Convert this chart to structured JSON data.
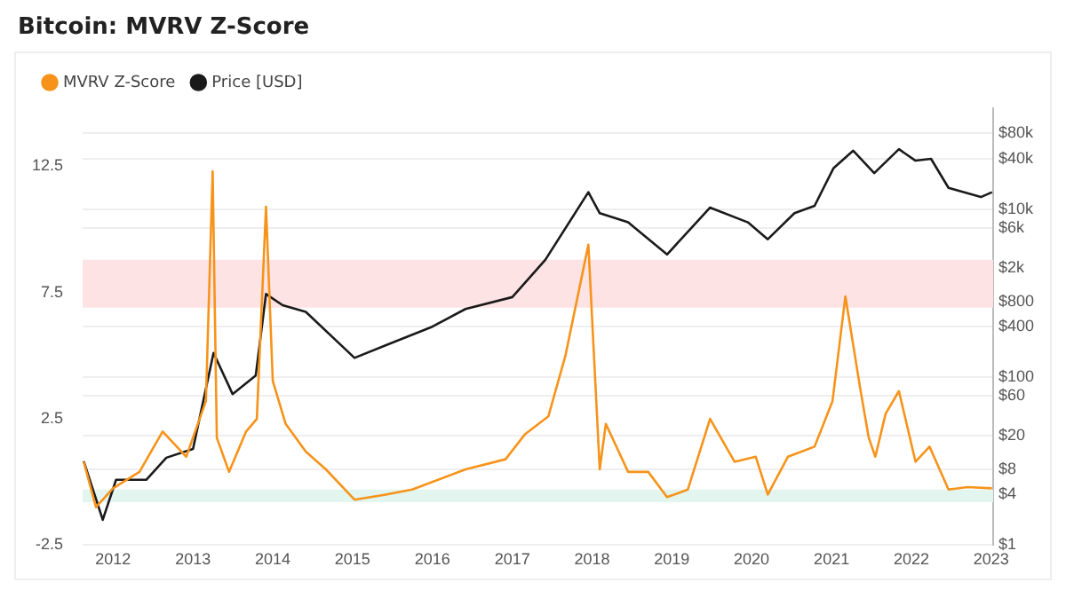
{
  "chart_data": {
    "type": "line",
    "title": "Bitcoin: MVRV Z-Score",
    "xlim": [
      "2011-08-15",
      "2023-01-10"
    ],
    "xticks": [
      {
        "value": "2012",
        "label": "2012"
      },
      {
        "value": "2013",
        "label": "2013"
      },
      {
        "value": "2014",
        "label": "2014"
      },
      {
        "value": "2015",
        "label": "2015"
      },
      {
        "value": "2016",
        "label": "2016"
      },
      {
        "value": "2017",
        "label": "2017"
      },
      {
        "value": "2018",
        "label": "2018"
      },
      {
        "value": "2019",
        "label": "2019"
      },
      {
        "value": "2020",
        "label": "2020"
      },
      {
        "value": "2021",
        "label": "2021"
      },
      {
        "value": "2022",
        "label": "2022"
      },
      {
        "value": "2023",
        "label": "2023"
      }
    ],
    "ylim": [
      -2.5,
      14.8
    ],
    "yticks": [
      -2.5,
      2.5,
      7.5,
      12.5
    ],
    "y2lim": [
      1,
      160000
    ],
    "y2ticks": [
      {
        "value": 1,
        "label": "$1"
      },
      {
        "value": 4,
        "label": "$4"
      },
      {
        "value": 8,
        "label": "$8"
      },
      {
        "value": 20,
        "label": "$20"
      },
      {
        "value": 60,
        "label": "$60"
      },
      {
        "value": 100,
        "label": "$100"
      },
      {
        "value": 400,
        "label": "$400"
      },
      {
        "value": 800,
        "label": "$800"
      },
      {
        "value": 2000,
        "label": "$2k"
      },
      {
        "value": 6000,
        "label": "$6k"
      },
      {
        "value": 10000,
        "label": "$10k"
      },
      {
        "value": 40000,
        "label": "$40k"
      },
      {
        "value": 80000,
        "label": "$80k"
      }
    ],
    "log": "y2",
    "grid": "y",
    "legend": "top left",
    "bands": [
      {
        "axis": "y",
        "from": 6.9,
        "to": 8.8,
        "color": "#fde3e3"
      },
      {
        "axis": "y",
        "from": -0.8,
        "to": -0.3,
        "color": "#e2f5ee"
      }
    ],
    "series": [
      {
        "name": "MVRV Z-Score",
        "color": "#f7931a",
        "x": [
          "2011-08-20",
          "2011-10-15",
          "2012-01-01",
          "2012-05-01",
          "2012-08-15",
          "2012-12-01",
          "2013-03-01",
          "2013-04-01",
          "2013-04-20",
          "2013-06-15",
          "2013-09-01",
          "2013-10-20",
          "2013-12-01",
          "2014-01-01",
          "2014-03-01",
          "2014-06-01",
          "2014-09-01",
          "2015-01-10",
          "2015-06-01",
          "2015-10-01",
          "2016-06-01",
          "2016-12-01",
          "2017-03-01",
          "2017-06-15",
          "2017-09-01",
          "2017-12-15",
          "2018-02-05",
          "2018-03-05",
          "2018-06-15",
          "2018-09-15",
          "2018-12-10",
          "2019-03-15",
          "2019-06-25",
          "2019-10-15",
          "2020-01-20",
          "2020-03-15",
          "2020-06-15",
          "2020-10-15",
          "2021-01-05",
          "2021-03-05",
          "2021-05-10",
          "2021-06-20",
          "2021-07-20",
          "2021-09-05",
          "2021-11-05",
          "2022-01-20",
          "2022-03-25",
          "2022-06-20",
          "2022-09-15",
          "2023-01-05"
        ],
        "values": [
          0.8,
          -1.0,
          -0.25,
          0.4,
          2.0,
          1.0,
          3.2,
          12.3,
          1.75,
          0.4,
          2.0,
          2.5,
          10.9,
          4.0,
          2.3,
          1.2,
          0.5,
          -0.7,
          -0.5,
          -0.3,
          0.5,
          0.9,
          1.9,
          2.6,
          5.0,
          9.4,
          0.5,
          2.3,
          0.4,
          0.4,
          -0.6,
          -0.3,
          2.5,
          0.8,
          1.0,
          -0.5,
          1.0,
          1.4,
          3.2,
          7.35,
          3.8,
          1.75,
          1.0,
          2.7,
          3.6,
          0.8,
          1.4,
          -0.3,
          -0.2,
          -0.25
        ]
      },
      {
        "name": "Price [USD]",
        "color": "#1a1a1a",
        "axis": "y2",
        "x": [
          "2011-08-20",
          "2011-11-15",
          "2012-01-15",
          "2012-06-01",
          "2012-09-01",
          "2013-01-01",
          "2013-04-05",
          "2013-07-01",
          "2013-10-15",
          "2013-12-01",
          "2014-02-15",
          "2014-06-01",
          "2015-01-10",
          "2015-06-01",
          "2016-01-01",
          "2016-06-01",
          "2017-01-01",
          "2017-06-01",
          "2017-12-15",
          "2018-02-05",
          "2018-06-15",
          "2018-12-10",
          "2019-06-25",
          "2019-12-15",
          "2020-03-15",
          "2020-07-15",
          "2020-10-15",
          "2021-01-10",
          "2021-04-10",
          "2021-07-15",
          "2021-11-05",
          "2022-01-20",
          "2022-04-01",
          "2022-06-20",
          "2022-11-15",
          "2023-01-05"
        ],
        "values": [
          10,
          2,
          6,
          6,
          11,
          14,
          195,
          63,
          105,
          980,
          720,
          600,
          170,
          240,
          400,
          650,
          900,
          2500,
          16000,
          9000,
          7000,
          2900,
          10500,
          7000,
          4400,
          9000,
          11000,
          31000,
          50000,
          27000,
          52000,
          38000,
          40000,
          18000,
          14000,
          16000
        ]
      }
    ]
  }
}
